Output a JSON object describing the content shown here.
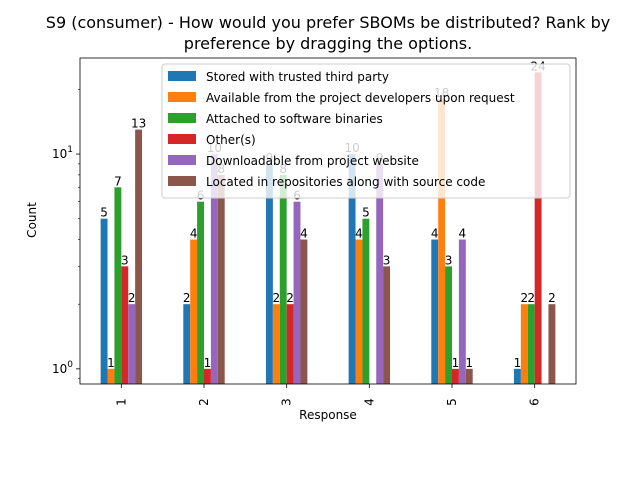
{
  "chart_data": {
    "type": "bar",
    "title_lines": [
      "S9 (consumer) - How would you prefer SBOMs be distributed? Rank by",
      "preference by dragging the options."
    ],
    "xlabel": "Response",
    "ylabel": "Count",
    "yscale": "log",
    "ylim": [
      0.85,
      28
    ],
    "yticks": [
      {
        "value": 1,
        "base": "10",
        "exp": "0"
      },
      {
        "value": 10,
        "base": "10",
        "exp": "1"
      }
    ],
    "categories": [
      "1",
      "2",
      "3",
      "4",
      "5",
      "6"
    ],
    "series": [
      {
        "name": "Stored with trusted third party",
        "color": "#1f77b4",
        "values": [
          5,
          2,
          9,
          10,
          4,
          1
        ]
      },
      {
        "name": "Available from the project developers upon request",
        "color": "#ff7f0e",
        "values": [
          1,
          4,
          2,
          4,
          18,
          2
        ]
      },
      {
        "name": "Attached to software binaries",
        "color": "#2ca02c",
        "values": [
          7,
          6,
          8,
          5,
          3,
          2
        ]
      },
      {
        "name": "Other(s)",
        "color": "#d62728",
        "values": [
          3,
          1,
          2,
          null,
          1,
          24
        ]
      },
      {
        "name": "Downloadable from project website",
        "color": "#9467bd",
        "values": [
          2,
          10,
          6,
          9,
          4,
          null
        ]
      },
      {
        "name": "Located in repositories along with source code",
        "color": "#8c564b",
        "values": [
          13,
          8,
          4,
          3,
          1,
          2
        ]
      }
    ],
    "legend_position": "top-right"
  }
}
